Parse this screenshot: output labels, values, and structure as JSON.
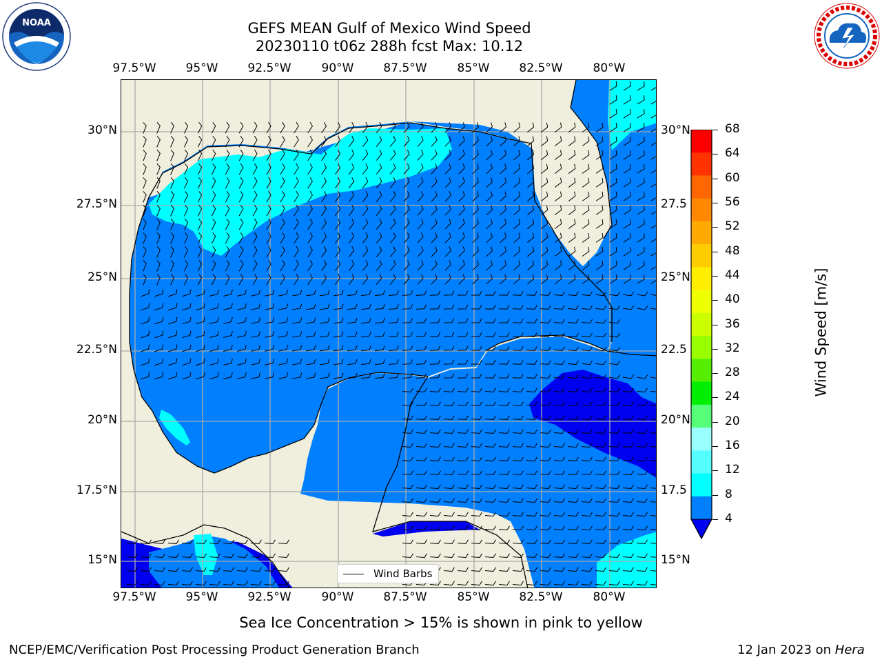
{
  "title": {
    "line1": "GEFS MEAN Gulf of Mexico Wind Speed",
    "line2": "20230110 t06z 288h fcst   Max: 10.12"
  },
  "map": {
    "lon_ticks": [
      "97.5°W",
      "95°W",
      "92.5°W",
      "90°W",
      "87.5°W",
      "85°W",
      "82.5°W",
      "80°W"
    ],
    "lat_ticks_left": [
      "30°N",
      "27.5°N",
      "25°N",
      "22.5°N",
      "20°N",
      "17.5°N",
      "15°N"
    ],
    "lat_ticks_right": [
      "30°N",
      "27.5",
      "25°N",
      "22.5",
      "20°N",
      "17.5",
      "15°N"
    ],
    "colors": {
      "land": "#f0eedc",
      "wind_4_8": "#0080ff",
      "wind_8_12": "#00ffff",
      "wind_below_4": "#0000f0",
      "grid": "#aaaaaa"
    }
  },
  "legend": {
    "label": "Wind Barbs"
  },
  "colorbar": {
    "title": "Wind Speed [m/s]",
    "ticks": [
      "68",
      "64",
      "60",
      "56",
      "52",
      "48",
      "44",
      "40",
      "36",
      "32",
      "28",
      "24",
      "20",
      "16",
      "12",
      "8",
      "4"
    ],
    "colors": [
      "#ff0000",
      "#ff3300",
      "#ff6600",
      "#ff8800",
      "#ffaa00",
      "#ffcc00",
      "#ffee00",
      "#eeff00",
      "#ccff00",
      "#99ff00",
      "#55ee00",
      "#00ee00",
      "#55ff77",
      "#99ffff",
      "#55ffff",
      "#00ffff",
      "#0080ff"
    ],
    "under_color": "#0000f0"
  },
  "note": "Sea Ice Concentration > 15% is shown in pink to yellow",
  "footer": {
    "left": "NCEP/EMC/Verification Post Processing Product Generation Branch",
    "right_date": "12 Jan 2023 on ",
    "right_host": "Hera"
  },
  "logos": {
    "noaa": "NOAA",
    "nws": "NATIONAL WEATHER SERVICE"
  }
}
